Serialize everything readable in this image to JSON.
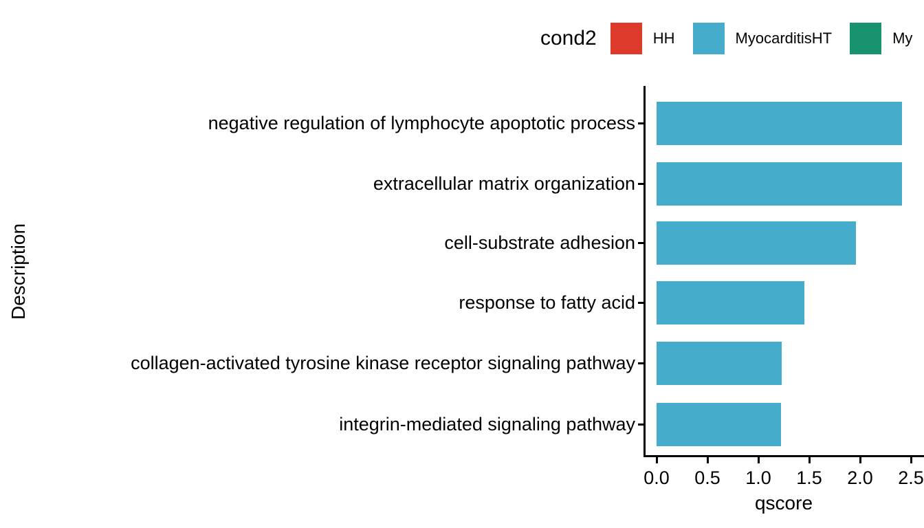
{
  "chart_data": {
    "type": "bar",
    "orientation": "horizontal",
    "title": "",
    "xlabel": "qscore",
    "ylabel": "Description",
    "categories": [
      "negative regulation of lymphocyte apoptotic process",
      "extracellular matrix organization",
      "cell-substrate adhesion",
      "response to fatty acid",
      "collagen-activated tyrosine kinase receptor signaling pathway",
      "integrin-mediated signaling pathway"
    ],
    "values": [
      2.41,
      2.41,
      1.96,
      1.45,
      1.23,
      1.22
    ],
    "series_name": "MyocarditisHT",
    "bar_color": "#45ACCB",
    "xlim": [
      0,
      2.5
    ],
    "x_ticks": [
      0.0,
      0.5,
      1.0,
      1.5,
      2.0,
      2.5
    ],
    "x_tick_labels": [
      "0.0",
      "0.5",
      "1.0",
      "1.5",
      "2.0",
      "2.5"
    ],
    "grid": false,
    "legend_position": "top-right"
  },
  "legend": {
    "title": "cond2",
    "items": [
      {
        "label": "HH",
        "color": "#DC3B2B"
      },
      {
        "label": "MyocarditisHT",
        "color": "#45ACCB"
      },
      {
        "label": "My",
        "color": "#17946F"
      }
    ]
  }
}
